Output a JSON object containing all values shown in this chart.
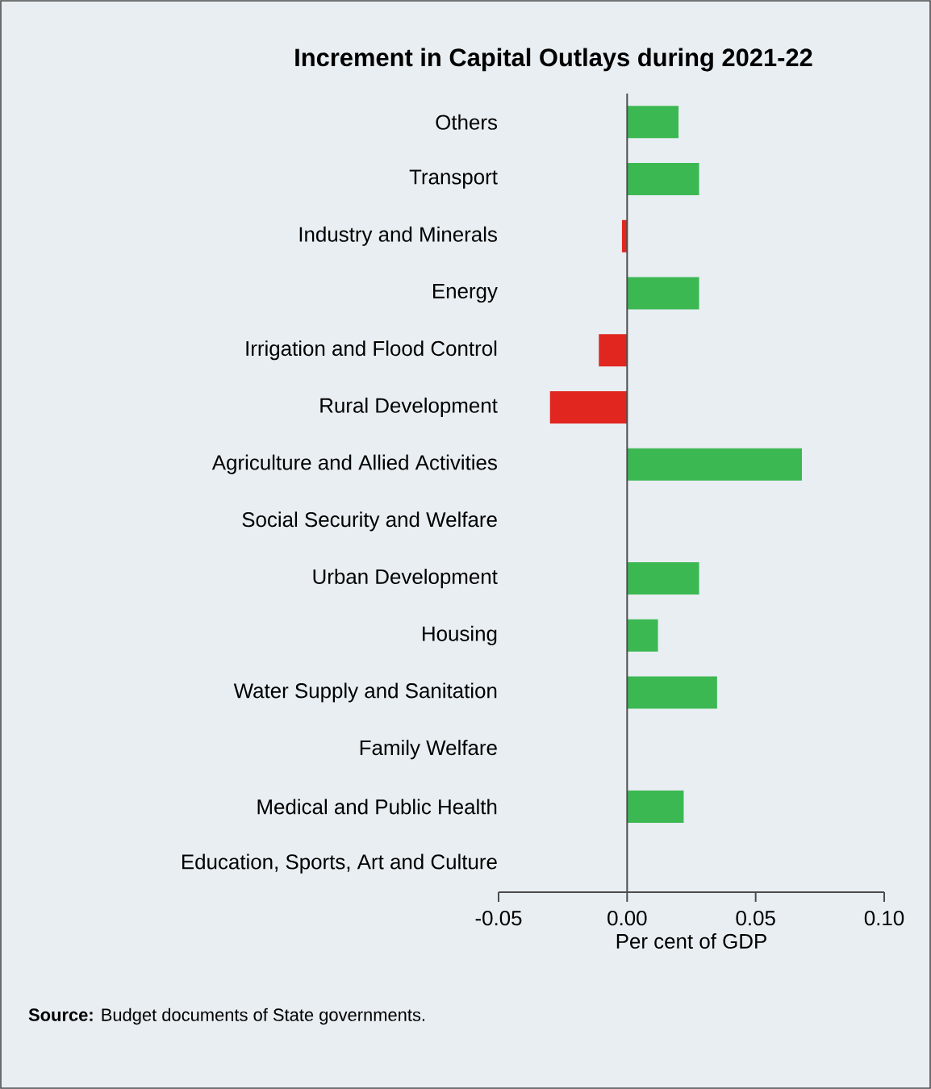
{
  "chart_data": {
    "type": "bar",
    "orientation": "horizontal",
    "title": "Increment in Capital Outlays during 2021-22",
    "xlabel": "Per cent of GDP",
    "categories": [
      "Others",
      "Transport",
      "Industry and Minerals",
      "Energy",
      "Irrigation and Flood Control",
      "Rural Development",
      "Agriculture and Allied Activities",
      "Social Security and Welfare",
      "Urban Development",
      "Housing",
      "Water Supply and Sanitation",
      "Family Welfare",
      "Medical and Public Health",
      "Education, Sports, Art and Culture"
    ],
    "values": [
      0.02,
      0.028,
      -0.002,
      0.028,
      -0.011,
      -0.03,
      0.068,
      0,
      0.028,
      0.012,
      0.035,
      0,
      0.022,
      0
    ],
    "colors": [
      "#3cb853",
      "#3cb853",
      "#e0261f",
      "#3cb853",
      "#e0261f",
      "#e0261f",
      "#3cb853",
      "#3cb853",
      "#3cb853",
      "#3cb853",
      "#3cb853",
      "#3cb853",
      "#3cb853",
      "#3cb853"
    ],
    "xlim": [
      -0.05,
      0.1
    ],
    "xticks": [
      {
        "value": -0.05,
        "label": "-0.05"
      },
      {
        "value": 0,
        "label": "0.00"
      },
      {
        "value": 0.05,
        "label": "0.05"
      },
      {
        "value": 0.1,
        "label": "0.10"
      }
    ],
    "annotations": [
      "**Source:** Budget documents of State governments."
    ]
  }
}
